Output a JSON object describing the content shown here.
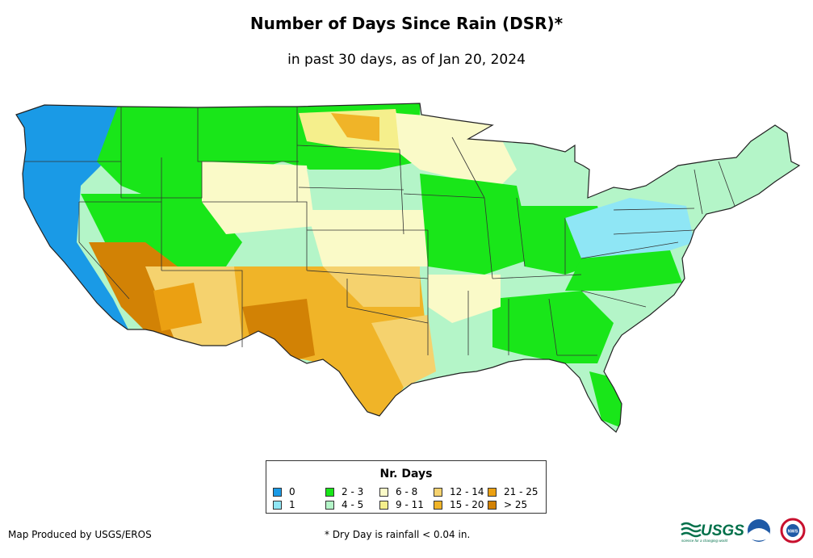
{
  "title": "Number of Days Since Rain (DSR)*",
  "subtitle": "in past 30 days, as of Jan 20, 2024",
  "legend": {
    "title": "Nr. Days",
    "items": [
      {
        "label": "0",
        "color": "#1a9ae6"
      },
      {
        "label": "1",
        "color": "#8fe6f5"
      },
      {
        "label": "2 - 3",
        "color": "#19e619"
      },
      {
        "label": "4 - 5",
        "color": "#b4f5c8"
      },
      {
        "label": "6 - 8",
        "color": "#fafac8"
      },
      {
        "label": "9 - 11",
        "color": "#f5ef8c"
      },
      {
        "label": "12 - 14",
        "color": "#f5d26e"
      },
      {
        "label": "15 - 20",
        "color": "#f0b428"
      },
      {
        "label": "21 - 25",
        "color": "#eba012"
      },
      {
        "label": "> 25",
        "color": "#d28205"
      }
    ]
  },
  "footer": {
    "produced_by": "Map Produced by USGS/EROS",
    "dry_day_note": "* Dry Day is rainfall < 0.04 in."
  },
  "logos": {
    "usgs": "USGS",
    "usgs_tagline": "science for a changing world",
    "noaa": "noaa",
    "nws": "NWS"
  }
}
